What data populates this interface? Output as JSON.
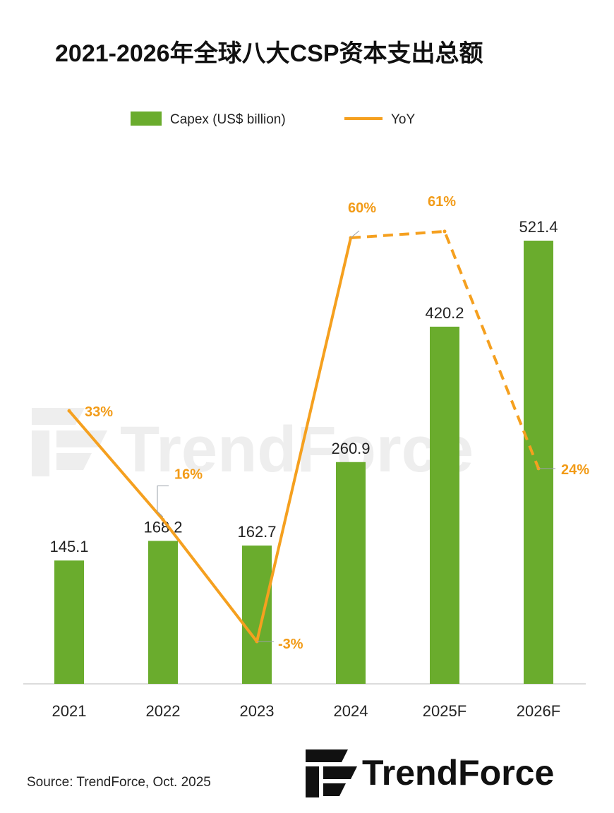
{
  "chart_data": {
    "type": "bar",
    "title": "2021-2026年全球八大CSP资本支出总额",
    "categories": [
      "2021",
      "2022",
      "2023",
      "2024",
      "2025F",
      "2026F"
    ],
    "series": [
      {
        "name": "Capex (US$ billion)",
        "type": "bar",
        "values": [
          145.1,
          168.2,
          162.7,
          260.9,
          420.2,
          521.4
        ],
        "labels": [
          "145.1",
          "168.2",
          "162.7",
          "260.9",
          "420.2",
          "521.4"
        ]
      },
      {
        "name": "YoY",
        "type": "line",
        "values": [
          33,
          16,
          -3,
          60,
          61,
          24
        ],
        "labels": [
          "33%",
          "16%",
          "-3%",
          "60%",
          "61%",
          "24%"
        ],
        "dashed_from_index": 3
      }
    ],
    "legend_position": "top-center",
    "grid": false,
    "colors": {
      "bar": "#6aac2d",
      "line": "#f5a01f",
      "line_label": "#f29b17",
      "axis": "#d0d0d0"
    }
  },
  "footer": {
    "source": "Source: TrendForce, Oct. 2025"
  },
  "brand": {
    "logo_text": "TrendForce",
    "watermark_text": "TrendForce"
  }
}
